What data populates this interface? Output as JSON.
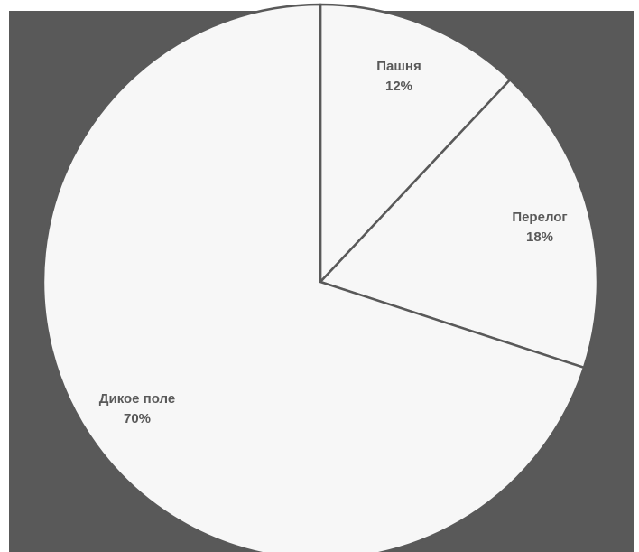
{
  "colors": {
    "page_background": "#ffffff",
    "plot_background": "#595959",
    "slice_fill": "#f7f7f7",
    "slice_stroke": "#595959",
    "label_text": "#595959"
  },
  "chart_data": {
    "type": "pie",
    "title": "",
    "start": "12 o'clock",
    "direction": "clockwise",
    "legend": "none",
    "categories": [
      "Пашня",
      "Перелог",
      "Дикое поле"
    ],
    "values": [
      12,
      18,
      70
    ],
    "data_labels": [
      {
        "name": "Пашня",
        "value": "12%"
      },
      {
        "name": "Перелог",
        "value": "18%"
      },
      {
        "name": "Дикое поле",
        "value": "70%"
      }
    ]
  }
}
